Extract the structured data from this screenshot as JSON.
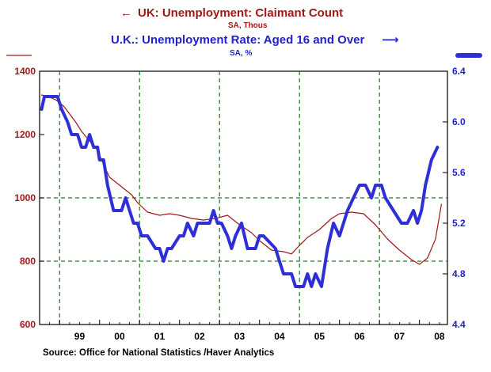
{
  "chart_data": {
    "type": "line",
    "title_left": "UK: Unemployment: Claimant Count",
    "subtitle_left": "SA, Thous",
    "title_right": "U.K.: Unemployment Rate: Aged 16 and Over",
    "subtitle_right": "SA, %",
    "left_arrow": "←",
    "right_arrow": "⟶",
    "left_axis": {
      "ylim": [
        600,
        1400
      ],
      "ticks": [
        "1400",
        "1200",
        "1000",
        "800",
        "600"
      ]
    },
    "right_axis": {
      "ylim": [
        4.4,
        6.4
      ],
      "ticks": [
        "6.4",
        "6.0",
        "5.6",
        "5.2",
        "4.8",
        "4.4"
      ]
    },
    "x_axis": {
      "xlim": [
        1998.5,
        2008.7
      ],
      "labels": [
        "99",
        "00",
        "01",
        "02",
        "03",
        "04",
        "05",
        "06",
        "07",
        "08"
      ],
      "major_ticks": [
        1999,
        2000,
        2001,
        2002,
        2003,
        2004,
        2005,
        2006,
        2007,
        2008
      ]
    },
    "grid": {
      "vertical": [
        1999,
        2001,
        2003,
        2005,
        2007
      ],
      "horizontal_left_values": [
        1000,
        800
      ]
    },
    "colors": {
      "claimant": "#a01818",
      "rate": "#2f2fd8",
      "left_text": "#a01818",
      "right_text": "#2222cc",
      "grid": "#1a7a1a"
    },
    "series": [
      {
        "name": "UK: Unemployment: Claimant Count",
        "axis": "left",
        "x": [
          1998.55,
          1998.7,
          1998.9,
          1999.1,
          1999.25,
          1999.4,
          1999.55,
          1999.75,
          1999.95,
          2000.1,
          2000.25,
          2000.45,
          2000.6,
          2000.8,
          2000.95,
          2001.2,
          2001.5,
          2001.75,
          2002.0,
          2002.3,
          2002.6,
          2002.9,
          2003.2,
          2003.5,
          2003.8,
          2004.0,
          2004.3,
          2004.6,
          2004.8,
          2005.0,
          2005.2,
          2005.5,
          2005.8,
          2006.0,
          2006.3,
          2006.6,
          2006.9,
          2007.2,
          2007.5,
          2007.8,
          2008.0,
          2008.2,
          2008.4,
          2008.55
        ],
        "values": [
          1325,
          1320,
          1310,
          1290,
          1265,
          1240,
          1210,
          1180,
          1150,
          1105,
          1065,
          1045,
          1030,
          1010,
          985,
          955,
          945,
          950,
          945,
          935,
          930,
          935,
          945,
          915,
          890,
          865,
          835,
          830,
          823,
          850,
          875,
          900,
          935,
          950,
          955,
          950,
          915,
          870,
          835,
          805,
          790,
          810,
          870,
          980
        ]
      },
      {
        "name": "U.K.: Unemployment Rate: Aged 16 and Over",
        "axis": "right",
        "x": [
          1998.55,
          1998.62,
          1998.7,
          1998.95,
          1999.05,
          1999.2,
          1999.3,
          1999.45,
          1999.55,
          1999.65,
          1999.75,
          1999.85,
          1999.95,
          2000.0,
          2000.1,
          2000.2,
          2000.35,
          2000.45,
          2000.55,
          2000.65,
          2000.75,
          2000.85,
          2000.95,
          2001.05,
          2001.2,
          2001.4,
          2001.5,
          2001.6,
          2001.7,
          2001.8,
          2002.0,
          2002.1,
          2002.2,
          2002.35,
          2002.45,
          2002.55,
          2002.65,
          2002.75,
          2002.85,
          2002.95,
          2003.05,
          2003.2,
          2003.3,
          2003.4,
          2003.55,
          2003.7,
          2003.9,
          2004.0,
          2004.1,
          2004.4,
          2004.5,
          2004.6,
          2004.7,
          2004.8,
          2004.9,
          2005.0,
          2005.1,
          2005.2,
          2005.3,
          2005.4,
          2005.55,
          2005.7,
          2005.85,
          2006.0,
          2006.2,
          2006.35,
          2006.5,
          2006.65,
          2006.8,
          2006.9,
          2007.05,
          2007.15,
          2007.35,
          2007.55,
          2007.7,
          2007.85,
          2007.95,
          2008.05,
          2008.15,
          2008.3,
          2008.45
        ],
        "values": [
          6.1,
          6.2,
          6.2,
          6.2,
          6.1,
          6.0,
          5.9,
          5.9,
          5.8,
          5.8,
          5.9,
          5.8,
          5.8,
          5.7,
          5.7,
          5.5,
          5.3,
          5.3,
          5.3,
          5.4,
          5.3,
          5.2,
          5.2,
          5.1,
          5.1,
          5.0,
          5.0,
          4.9,
          5.0,
          5.0,
          5.1,
          5.1,
          5.2,
          5.1,
          5.2,
          5.2,
          5.2,
          5.2,
          5.3,
          5.2,
          5.2,
          5.1,
          5.0,
          5.1,
          5.2,
          5.0,
          5.0,
          5.1,
          5.1,
          5.0,
          4.9,
          4.8,
          4.8,
          4.8,
          4.7,
          4.7,
          4.7,
          4.8,
          4.7,
          4.8,
          4.7,
          5.0,
          5.2,
          5.1,
          5.3,
          5.4,
          5.5,
          5.5,
          5.4,
          5.5,
          5.5,
          5.4,
          5.3,
          5.2,
          5.2,
          5.3,
          5.2,
          5.3,
          5.5,
          5.7,
          5.8
        ]
      }
    ]
  },
  "source": "Source:  Office for National Statistics /Haver Analytics"
}
